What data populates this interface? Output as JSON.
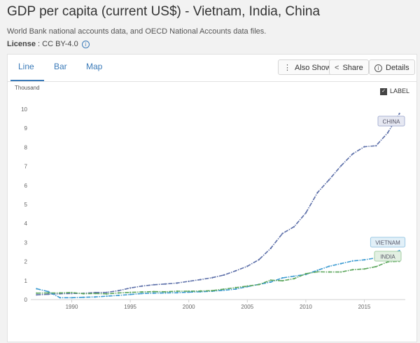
{
  "header": {
    "title": "GDP per capita (current US$) - Vietnam, India, China",
    "subtitle": "World Bank national accounts data, and OECD National Accounts data files.",
    "license_label": "License",
    "license_value": " : CC BY-4.0",
    "info_icon": "info-icon"
  },
  "tabs": [
    {
      "label": "Line",
      "active": true
    },
    {
      "label": "Bar",
      "active": false
    },
    {
      "label": "Map",
      "active": false
    }
  ],
  "toolbar": {
    "also_show": "Also Show",
    "share": "Share",
    "details": "Details",
    "icons": {
      "also_show": "vertical-dots-icon",
      "share": "share-icon",
      "details": "info-icon"
    }
  },
  "chart_data": {
    "type": "line",
    "unit": "Thousand",
    "label_toggle": "LABEL",
    "label_checked": true,
    "ylim": [
      0,
      10
    ],
    "yticks": [
      0,
      1,
      2,
      3,
      4,
      5,
      6,
      7,
      8,
      9,
      10
    ],
    "xlim": [
      1986.5,
      2018.5
    ],
    "xticks": [
      1990,
      1995,
      2000,
      2005,
      2010,
      2015
    ],
    "grid": false,
    "series": [
      {
        "name": "CHINA",
        "color": "#5b6ea8",
        "label_bg": "#e6e8f2",
        "label_border": "#aab3d4",
        "x": [
          1987,
          1988,
          1989,
          1990,
          1991,
          1992,
          1993,
          1994,
          1995,
          1996,
          1997,
          1998,
          1999,
          2000,
          2001,
          2002,
          2003,
          2004,
          2005,
          2006,
          2007,
          2008,
          2009,
          2010,
          2011,
          2012,
          2013,
          2014,
          2015,
          2016,
          2017,
          2018
        ],
        "values": [
          0.25,
          0.28,
          0.31,
          0.32,
          0.33,
          0.37,
          0.38,
          0.47,
          0.61,
          0.71,
          0.78,
          0.82,
          0.87,
          0.96,
          1.05,
          1.15,
          1.29,
          1.51,
          1.75,
          2.1,
          2.69,
          3.47,
          3.83,
          4.55,
          5.62,
          6.3,
          7.02,
          7.65,
          8.03,
          8.08,
          8.76,
          9.77
        ]
      },
      {
        "name": "VIETNAM",
        "color": "#3a9ad1",
        "label_bg": "#e2f0f8",
        "label_border": "#9cc9e4",
        "x": [
          1987,
          1988,
          1989,
          1990,
          1991,
          1992,
          1993,
          1994,
          1995,
          1996,
          1997,
          1998,
          1999,
          2000,
          2001,
          2002,
          2003,
          2004,
          2005,
          2006,
          2007,
          2008,
          2009,
          2010,
          2011,
          2012,
          2013,
          2014,
          2015,
          2016,
          2017,
          2018
        ],
        "values": [
          0.57,
          0.42,
          0.1,
          0.1,
          0.12,
          0.14,
          0.18,
          0.22,
          0.27,
          0.32,
          0.34,
          0.35,
          0.36,
          0.39,
          0.41,
          0.44,
          0.49,
          0.55,
          0.68,
          0.8,
          0.92,
          1.14,
          1.23,
          1.32,
          1.54,
          1.75,
          1.89,
          2.03,
          2.09,
          2.19,
          2.37,
          2.57
        ]
      },
      {
        "name": "INDIA",
        "color": "#5aa55a",
        "label_bg": "#e3f0e3",
        "label_border": "#a6cfa6",
        "x": [
          1987,
          1988,
          1989,
          1990,
          1991,
          1992,
          1993,
          1994,
          1995,
          1996,
          1997,
          1998,
          1999,
          2000,
          2001,
          2002,
          2003,
          2004,
          2005,
          2006,
          2007,
          2008,
          2009,
          2010,
          2011,
          2012,
          2013,
          2014,
          2015,
          2016,
          2017,
          2018
        ],
        "values": [
          0.34,
          0.35,
          0.35,
          0.37,
          0.31,
          0.32,
          0.3,
          0.35,
          0.38,
          0.4,
          0.42,
          0.41,
          0.44,
          0.44,
          0.45,
          0.47,
          0.55,
          0.63,
          0.71,
          0.79,
          1.02,
          0.99,
          1.1,
          1.36,
          1.46,
          1.45,
          1.45,
          1.57,
          1.61,
          1.73,
          1.98,
          2.01
        ]
      }
    ]
  }
}
